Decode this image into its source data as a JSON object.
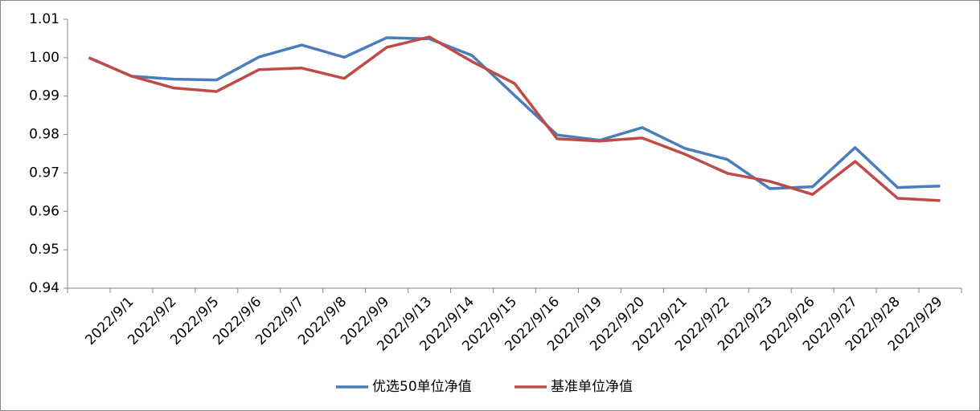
{
  "chart_data": {
    "type": "line",
    "categories": [
      null,
      "2022/9/1",
      "2022/9/2",
      "2022/9/5",
      "2022/9/6",
      "2022/9/7",
      "2022/9/8",
      "2022/9/9",
      "2022/9/13",
      "2022/9/14",
      "2022/9/15",
      "2022/9/16",
      "2022/9/19",
      "2022/9/20",
      "2022/9/21",
      "2022/9/22",
      "2022/9/23",
      "2022/9/26",
      "2022/9/27",
      "2022/9/28",
      "2022/9/29"
    ],
    "series": [
      {
        "name": "优选50单位净值",
        "color": "#4a7ebb",
        "values": [
          1.0,
          0.9952,
          0.9944,
          0.9942,
          1.0002,
          1.0033,
          1.0001,
          1.0052,
          1.0049,
          1.0006,
          0.9902,
          0.9799,
          0.9785,
          0.9818,
          0.9764,
          0.9735,
          0.9659,
          0.9664,
          0.9766,
          0.9662,
          0.9666
        ]
      },
      {
        "name": "基准单位净值",
        "color": "#be4b48",
        "values": [
          1.0,
          0.9952,
          0.9921,
          0.9912,
          0.9969,
          0.9973,
          0.9946,
          1.0027,
          1.0054,
          0.999,
          0.9933,
          0.9789,
          0.9783,
          0.9791,
          0.9749,
          0.9699,
          0.9678,
          0.9644,
          0.973,
          0.9634,
          0.9628
        ]
      }
    ],
    "ylim": [
      0.94,
      1.01
    ],
    "yticks": [
      0.94,
      0.95,
      0.96,
      0.97,
      0.98,
      0.99,
      {
        "value": 1,
        "label": "1.00"
      },
      1.01
    ],
    "legend": "bottom"
  }
}
